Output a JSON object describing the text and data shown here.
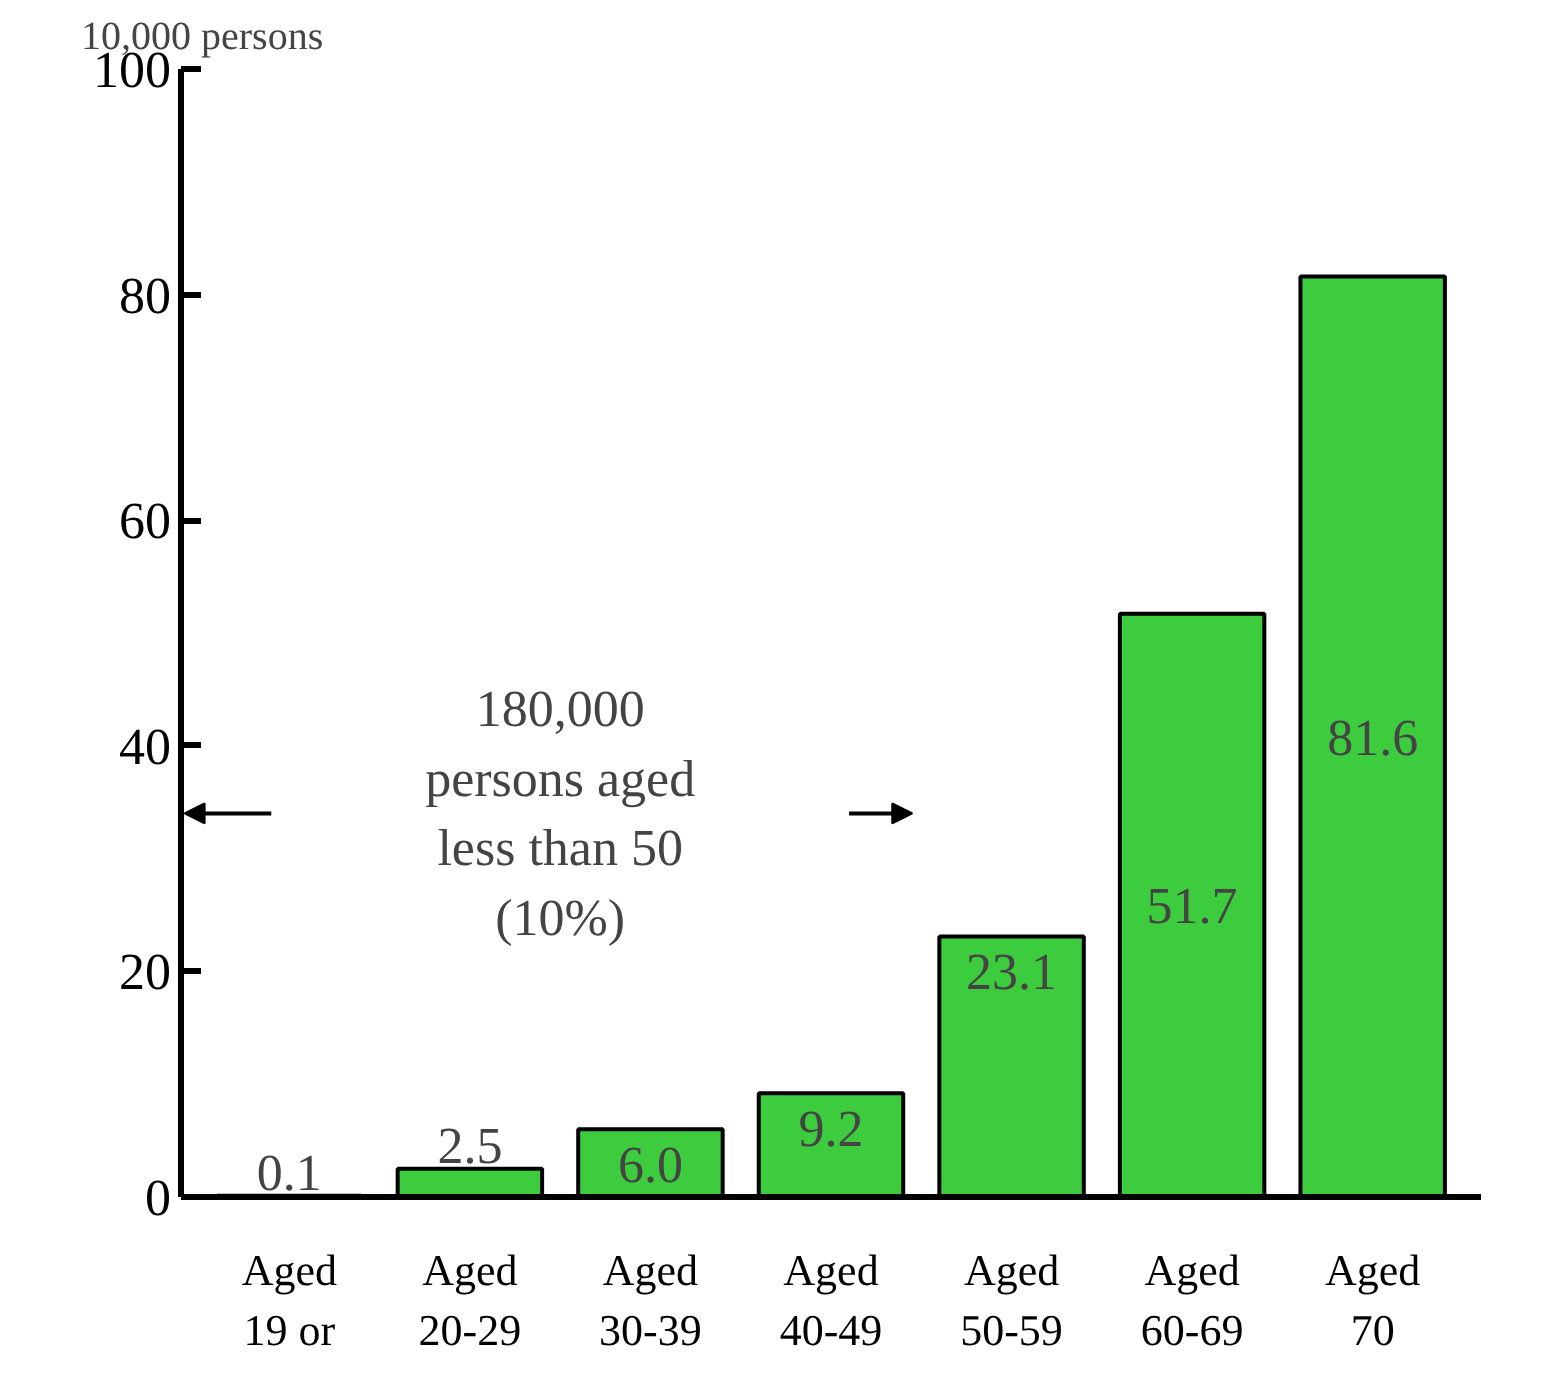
{
  "chart_data": {
    "type": "bar",
    "ylabel": "10,000 persons",
    "categories": [
      "Aged\n19 or",
      "Aged\n20-29",
      "Aged\n30-39",
      "Aged\n40-49",
      "Aged\n50-59",
      "Aged\n60-69",
      "Aged\n70"
    ],
    "values": [
      0.1,
      2.5,
      6.0,
      9.2,
      23.1,
      51.7,
      81.6
    ],
    "color": "#3dcc3d",
    "value_labels": [
      "0.1",
      "2.5",
      "6.0",
      "9.2",
      "23.1",
      "51.7",
      "81.6"
    ],
    "ylim": [
      0,
      100
    ],
    "yticks": [
      0,
      20,
      40,
      60,
      80,
      100
    ],
    "grid": false,
    "annotations": [
      "180,000\npersons aged\nless than 50\n(10%)"
    ]
  }
}
